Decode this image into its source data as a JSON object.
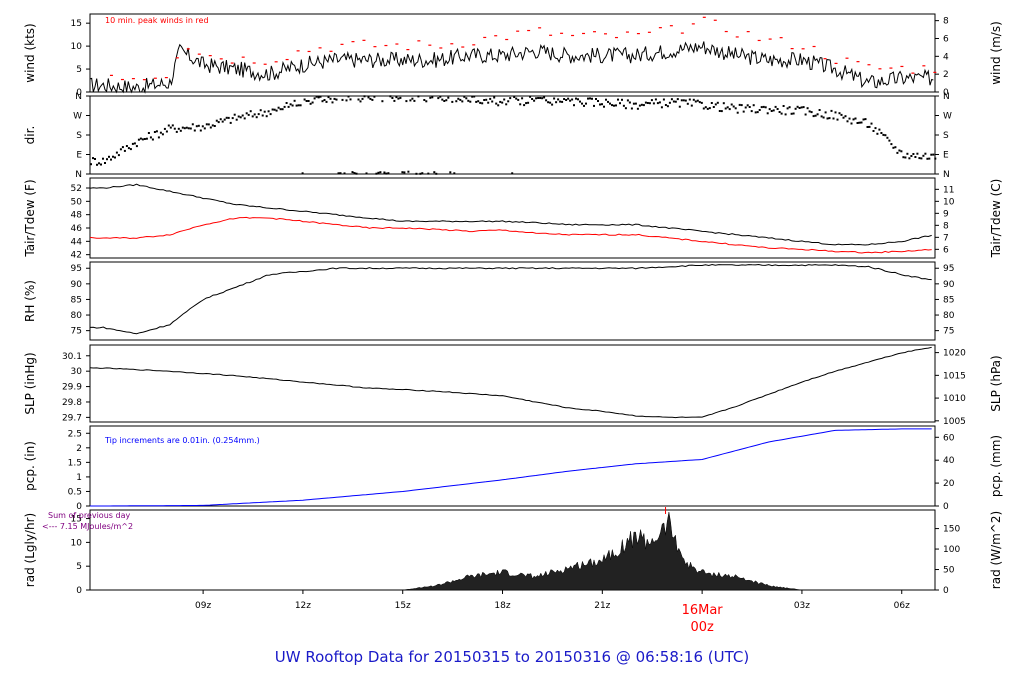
{
  "footer": {
    "caption": "UW Rooftop Data for 20150315  to  20150316 @ 06:58:16  (UTC)"
  },
  "x_axis": {
    "ticks": [
      "09z",
      "12z",
      "15z",
      "18z",
      "21z",
      "03z",
      "06z"
    ],
    "day_marker": {
      "date": "16Mar",
      "hour": "00z"
    }
  },
  "colors": {
    "main": "#000000",
    "red": "#ff0000",
    "blue": "#0000ff",
    "purple": "#800080",
    "caption": "#1a1ac8"
  },
  "chart_data": [
    {
      "type": "line",
      "title": "",
      "xlabel": "",
      "ylabel": "wind (kts)",
      "ylabel_right": "wind (m/s)",
      "ylim": [
        0,
        17
      ],
      "yticks": [
        0,
        5,
        10,
        15
      ],
      "yticks_right": [
        0,
        2,
        4,
        6,
        8
      ],
      "annotation": "10 min. peak winds in red",
      "x_hours": [
        6,
        7,
        8,
        8.3,
        9,
        10,
        11,
        12,
        13,
        14,
        15,
        16,
        17,
        18,
        19,
        20,
        21,
        22,
        23,
        24,
        25,
        26,
        27,
        28,
        29,
        30,
        31
      ],
      "series": [
        {
          "name": "wind",
          "values": [
            1.5,
            1,
            2,
            9,
            6,
            5,
            4,
            6,
            7,
            7,
            7,
            7,
            8,
            8,
            9,
            8,
            8,
            8,
            9,
            10,
            8,
            7,
            7,
            5,
            2,
            3,
            3
          ]
        },
        {
          "name": "peak",
          "values": [
            3,
            2,
            3,
            10,
            7,
            6,
            6,
            8,
            9,
            9,
            9,
            9,
            10,
            11,
            12,
            11,
            11,
            11,
            12,
            14,
            12,
            10,
            9,
            6,
            4,
            4,
            4
          ]
        }
      ]
    },
    {
      "type": "scatter",
      "title": "",
      "xlabel": "",
      "ylabel": "dir.",
      "ylim": [
        0,
        360
      ],
      "ytick_labels": [
        "N",
        "E",
        "S",
        "W",
        "N"
      ],
      "ytick_labels_right": [
        "N",
        "E",
        "S",
        "W",
        "N"
      ],
      "x_hours": [
        6,
        7,
        8,
        9,
        10,
        11,
        12,
        13,
        14,
        15,
        16,
        17,
        18,
        19,
        20,
        21,
        22,
        23,
        24,
        25,
        26,
        27,
        28,
        29,
        30,
        31
      ],
      "values": [
        60,
        150,
        210,
        220,
        260,
        290,
        340,
        350,
        350,
        355,
        350,
        345,
        335,
        340,
        335,
        330,
        320,
        330,
        320,
        300,
        300,
        290,
        270,
        230,
        90,
        80
      ]
    },
    {
      "type": "line",
      "title": "",
      "xlabel": "",
      "ylabel": "Tair/Tdew (F)",
      "ylabel_right": "Tair/Tdew (C)",
      "ylim": [
        41.5,
        53.5
      ],
      "yticks": [
        42,
        44,
        46,
        48,
        50,
        52
      ],
      "yticks_right": [
        6,
        7,
        8,
        9,
        10,
        11
      ],
      "x_hours": [
        6,
        7,
        8,
        9,
        10,
        11,
        12,
        13,
        14,
        15,
        16,
        17,
        18,
        19,
        20,
        21,
        22,
        23,
        24,
        25,
        26,
        27,
        28,
        29,
        30,
        31
      ],
      "series": [
        {
          "name": "Tair",
          "values": [
            52,
            52.5,
            51.5,
            50.5,
            49.5,
            49,
            48.5,
            48,
            47.5,
            47,
            47,
            47,
            47,
            46.8,
            46.5,
            46.5,
            46.5,
            46,
            45.5,
            45,
            44.5,
            44,
            43.5,
            43.5,
            44,
            45
          ]
        },
        {
          "name": "Tdew",
          "values": [
            44.5,
            44.5,
            45,
            46.5,
            47.5,
            47.5,
            47,
            46.5,
            46,
            46,
            45.8,
            45.5,
            45.7,
            45.2,
            45,
            45,
            45,
            44.5,
            44,
            43.5,
            43,
            42.8,
            42.5,
            42.3,
            42.5,
            42.8
          ]
        }
      ]
    },
    {
      "type": "line",
      "title": "",
      "xlabel": "",
      "ylabel": "RH (%)",
      "ylim": [
        72,
        97
      ],
      "yticks": [
        75,
        80,
        85,
        90,
        95
      ],
      "yticks_right": [
        75,
        80,
        85,
        90,
        95
      ],
      "x_hours": [
        6,
        7,
        8,
        9,
        10,
        11,
        12,
        13,
        14,
        16,
        18,
        20,
        22,
        24,
        26,
        28,
        29,
        30,
        31
      ],
      "values": [
        76,
        74,
        77,
        85,
        89,
        93,
        94,
        95,
        95,
        95,
        95,
        95,
        95,
        96,
        96,
        96,
        95.5,
        93,
        91
      ]
    },
    {
      "type": "line",
      "title": "",
      "xlabel": "",
      "ylabel": "SLP (inHg)",
      "ylabel_right": "SLP (hPa)",
      "ylim": [
        29.67,
        30.17
      ],
      "yticks": [
        29.7,
        29.8,
        29.9,
        30.0,
        30.1
      ],
      "yticks_right": [
        1005,
        1010,
        1015,
        1020
      ],
      "x_hours": [
        6,
        8,
        10,
        12,
        14,
        16,
        18,
        19,
        20,
        21,
        22,
        23,
        24,
        25,
        26,
        27,
        28,
        29,
        30,
        31
      ],
      "values": [
        30.02,
        30.0,
        29.97,
        29.93,
        29.89,
        29.87,
        29.84,
        29.8,
        29.76,
        29.74,
        29.71,
        29.7,
        29.7,
        29.77,
        29.85,
        29.93,
        30.0,
        30.06,
        30.12,
        30.16
      ]
    },
    {
      "type": "line",
      "title": "",
      "xlabel": "",
      "ylabel": "pcp. (in)",
      "ylabel_right": "pcp. (mm)",
      "ylim": [
        0,
        2.75
      ],
      "yticks": [
        0.0,
        0.5,
        1.0,
        1.5,
        2.0,
        2.5
      ],
      "yticks_right": [
        0,
        20,
        40,
        60
      ],
      "annotation": "Tip increments are 0.01in. (0.254mm.)",
      "x_hours": [
        6,
        9,
        12,
        15,
        18,
        20,
        22,
        24,
        26,
        28,
        30,
        31
      ],
      "values": [
        0,
        0.02,
        0.2,
        0.5,
        0.9,
        1.2,
        1.45,
        1.6,
        2.2,
        2.6,
        2.65,
        2.65
      ]
    },
    {
      "type": "area",
      "title": "",
      "xlabel": "",
      "ylabel": "rad (Lgly/hr)",
      "ylabel_right": "rad (W/m^2)",
      "ylim": [
        0,
        16.8
      ],
      "yticks": [
        0,
        5,
        10,
        15
      ],
      "yticks_right": [
        0,
        50,
        100,
        150
      ],
      "annotation": "Sum of previous day",
      "annotation_2": "<--- 7.15 MJoules/m^2",
      "x_hours": [
        6,
        7,
        8,
        9,
        10,
        11,
        12,
        13,
        14,
        15,
        16,
        17,
        18,
        19,
        20,
        21,
        22,
        22.5,
        23,
        23.5,
        24,
        25,
        26,
        27,
        28,
        29,
        30,
        31
      ],
      "values": [
        0,
        0,
        0,
        0,
        0,
        0,
        0,
        0,
        0,
        0,
        1,
        3,
        4,
        3,
        5,
        7,
        12,
        11,
        15,
        6,
        4,
        3,
        1,
        0,
        0,
        0,
        0,
        0
      ]
    }
  ]
}
